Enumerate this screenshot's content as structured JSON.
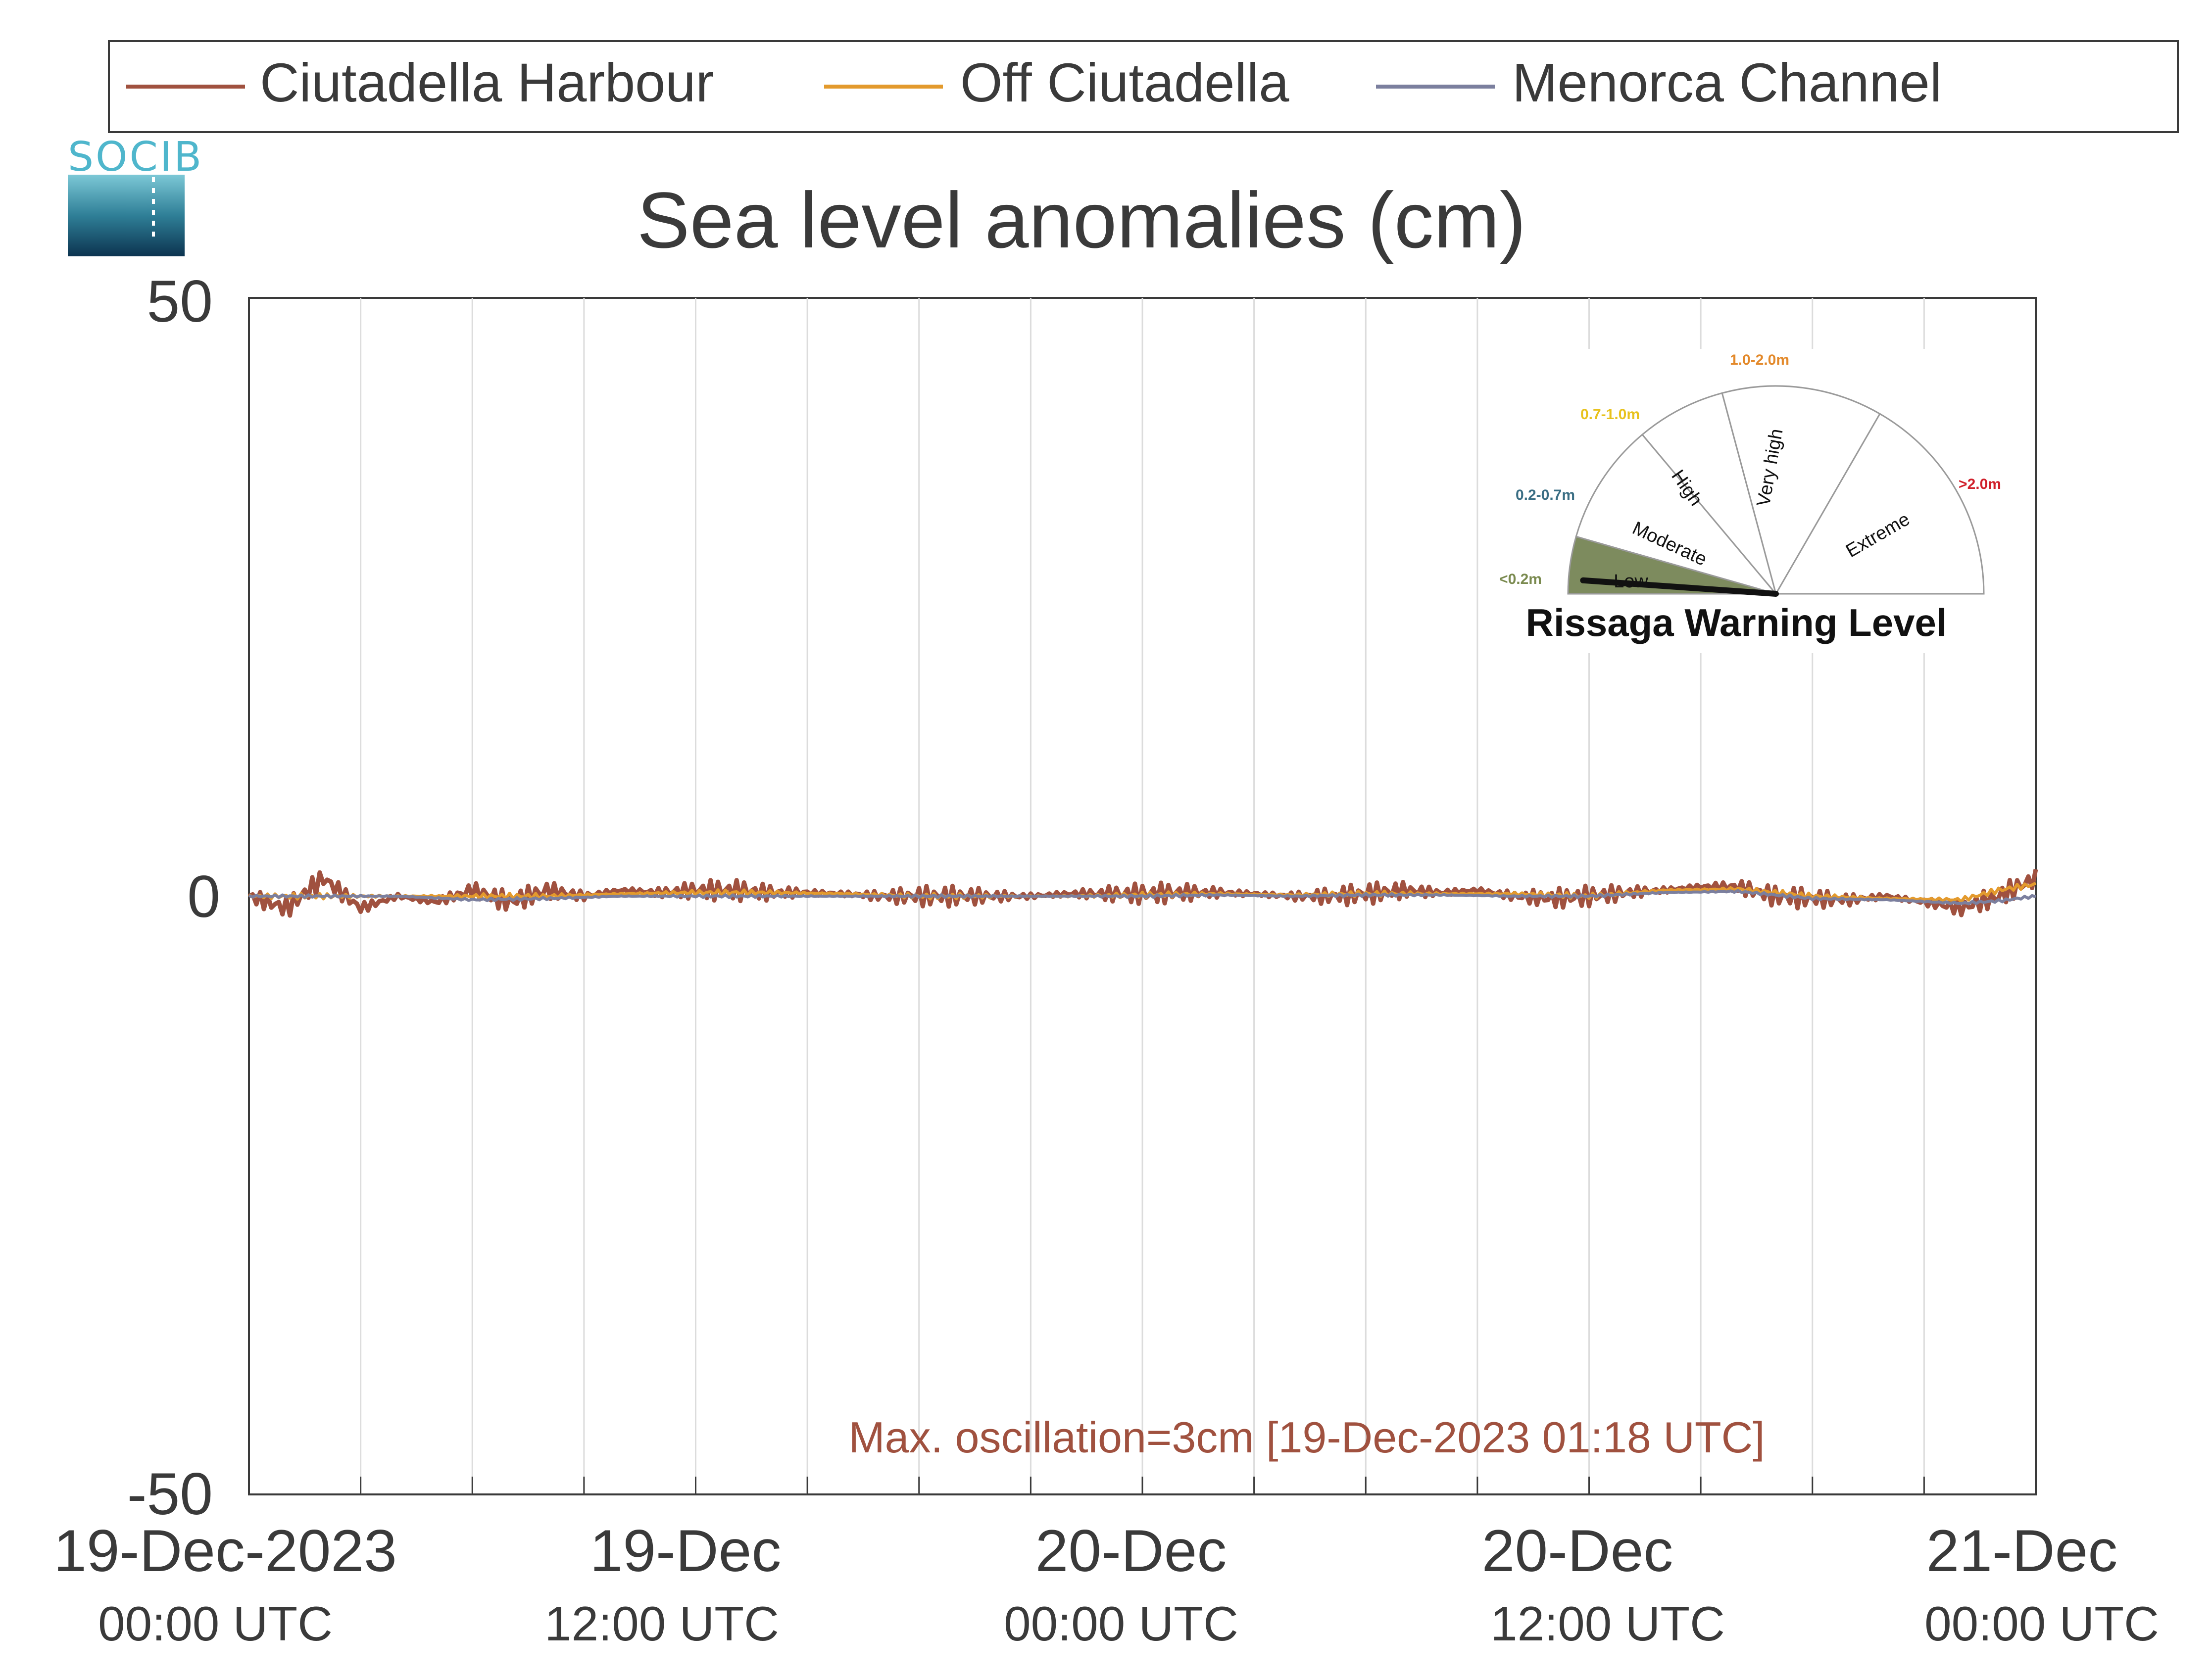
{
  "chart_data": {
    "type": "line",
    "title": "Sea level anomalies (cm)",
    "ylim": [
      -50,
      50
    ],
    "ytick_labels": [
      "50",
      "0",
      "-50"
    ],
    "x_range_hours": [
      0,
      48
    ],
    "xticks": [
      {
        "hour": 0,
        "line1": "19-Dec-2023",
        "line2": "00:00 UTC"
      },
      {
        "hour": 12,
        "line1": "19-Dec",
        "line2": "12:00 UTC"
      },
      {
        "hour": 24,
        "line1": "20-Dec",
        "line2": "00:00 UTC"
      },
      {
        "hour": 36,
        "line1": "20-Dec",
        "line2": "12:00 UTC"
      },
      {
        "hour": 48,
        "line1": "21-Dec",
        "line2": "00:00 UTC"
      }
    ],
    "grid": true,
    "legend_position": "top",
    "series": [
      {
        "name": "Ciutadella Harbour",
        "color": "#a0513f",
        "x": [
          0,
          1,
          2,
          3,
          4,
          5,
          6,
          7,
          8,
          9,
          10,
          11,
          12,
          13,
          14,
          15,
          16,
          17,
          18,
          19,
          20,
          21,
          22,
          23,
          24,
          25,
          26,
          27,
          28,
          29,
          30,
          31,
          32,
          33,
          34,
          35,
          36,
          37,
          38,
          39,
          40,
          41,
          42,
          43,
          44,
          45,
          46,
          47,
          48
        ],
        "y": [
          0,
          -1,
          1.5,
          -1,
          0,
          -0.5,
          0.5,
          -0.5,
          0.5,
          0,
          0.5,
          0.3,
          0.5,
          0.5,
          0.3,
          0.3,
          0.2,
          0,
          0,
          0,
          0,
          0,
          0.2,
          0.2,
          0.2,
          0.3,
          0.3,
          0.2,
          0,
          0,
          0.2,
          0.5,
          0.3,
          0.5,
          0,
          -0.2,
          0,
          0.3,
          0.5,
          0.8,
          0.8,
          0,
          -0.2,
          -0.3,
          0,
          -0.5,
          -1,
          0,
          1.5
        ]
      },
      {
        "name": "Off Ciutadella",
        "color": "#e39a2d",
        "x": [
          0,
          2,
          4,
          6,
          8,
          10,
          12,
          14,
          16,
          18,
          20,
          22,
          24,
          26,
          28,
          30,
          32,
          34,
          36,
          38,
          40,
          42,
          44,
          46,
          47,
          48
        ],
        "y": [
          0,
          0,
          0,
          0,
          0,
          0.2,
          0.3,
          0.3,
          0.2,
          0,
          0,
          0,
          0.1,
          0.2,
          0.1,
          0.2,
          0.2,
          0.2,
          0,
          0.5,
          0.6,
          0,
          -0.2,
          -0.3,
          0.5,
          1
        ]
      },
      {
        "name": "Menorca Channel",
        "color": "#7b7f9e",
        "x": [
          0,
          2,
          4,
          6,
          8,
          10,
          12,
          14,
          16,
          18,
          20,
          22,
          24,
          26,
          28,
          30,
          32,
          34,
          36,
          38,
          40,
          42,
          44,
          46,
          47,
          48
        ],
        "y": [
          0,
          0,
          0,
          -0.3,
          -0.2,
          0,
          0,
          0,
          0,
          0,
          0,
          0,
          0,
          0.1,
          0,
          0.1,
          0.1,
          0,
          0,
          0.3,
          0.4,
          -0.2,
          -0.3,
          -0.6,
          -0.4,
          0
        ]
      }
    ],
    "annotation": "Max. oscillation=3cm [19-Dec-2023 01:18 UTC]",
    "annotation_color": "#a0513f"
  },
  "logo": {
    "text": "SOCIB",
    "color": "#4fb6cc"
  },
  "gauge": {
    "title": "Rissaga Warning Level",
    "level_fraction": 0.0,
    "segments": [
      {
        "label": "Low",
        "range": "<0.2m",
        "range_color": "#7a8a4f",
        "fill": "#7d8b5e",
        "active": true
      },
      {
        "label": "Moderate",
        "range": "0.2-0.7m",
        "range_color": "#3a6e84",
        "fill": "#ffffff",
        "active": false
      },
      {
        "label": "High",
        "range": "0.7-1.0m",
        "range_color": "#e8c21e",
        "fill": "#ffffff",
        "active": false
      },
      {
        "label": "Very high",
        "range": "1.0-2.0m",
        "range_color": "#e3892a",
        "fill": "#ffffff",
        "active": false
      },
      {
        "label": "Extreme",
        "range": ">2.0m",
        "range_color": "#d01f2a",
        "fill": "#ffffff",
        "active": false
      }
    ]
  }
}
